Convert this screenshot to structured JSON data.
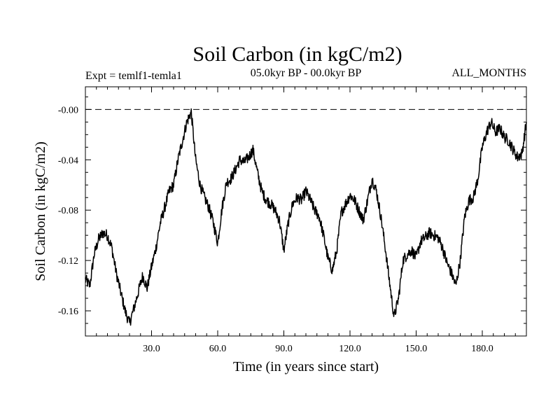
{
  "chart_data": {
    "type": "line",
    "title": "Soil Carbon (in kgC/m2)",
    "subtitle_left": "Expt = temlf1-temla1",
    "subtitle_center": "05.0kyr BP - 00.0kyr BP",
    "subtitle_right": "ALL_MONTHS",
    "xlabel": "Time (in years since start)",
    "ylabel": "Soil Carbon (in kgC/m2)",
    "xlim": [
      0,
      200
    ],
    "ylim": [
      -0.18,
      0.018
    ],
    "xticks": [
      30,
      60,
      90,
      120,
      150,
      180
    ],
    "xtick_labels": [
      "30.0",
      "60.0",
      "90.0",
      "120.0",
      "150.0",
      "180.0"
    ],
    "yticks": [
      0.0,
      -0.04,
      -0.08,
      -0.12,
      -0.16
    ],
    "ytick_labels": [
      "-0.00",
      "-0.04",
      "-0.08",
      "-0.12",
      "-0.16"
    ],
    "reference_line": {
      "y": 0.0,
      "style": "dashed"
    },
    "series": [
      {
        "name": "Soil Carbon",
        "x": [
          0,
          2,
          4,
          6,
          8,
          10,
          12,
          14,
          16,
          18,
          20,
          22,
          24,
          26,
          28,
          30,
          32,
          34,
          36,
          38,
          40,
          42,
          44,
          46,
          48,
          50,
          52,
          54,
          56,
          58,
          60,
          62,
          64,
          66,
          68,
          70,
          72,
          74,
          76,
          78,
          80,
          82,
          84,
          86,
          88,
          90,
          92,
          94,
          96,
          98,
          100,
          102,
          104,
          106,
          108,
          110,
          112,
          114,
          116,
          118,
          120,
          122,
          124,
          126,
          128,
          130,
          132,
          134,
          136,
          138,
          140,
          142,
          144,
          146,
          148,
          150,
          152,
          154,
          156,
          158,
          160,
          162,
          164,
          166,
          168,
          170,
          172,
          174,
          176,
          178,
          180,
          182,
          184,
          186,
          188,
          190,
          192,
          194,
          196,
          198,
          200
        ],
        "values": [
          -0.135,
          -0.14,
          -0.115,
          -0.103,
          -0.098,
          -0.1,
          -0.11,
          -0.13,
          -0.145,
          -0.16,
          -0.17,
          -0.158,
          -0.145,
          -0.132,
          -0.142,
          -0.125,
          -0.11,
          -0.09,
          -0.078,
          -0.065,
          -0.06,
          -0.04,
          -0.025,
          -0.01,
          -0.002,
          -0.04,
          -0.06,
          -0.07,
          -0.078,
          -0.09,
          -0.106,
          -0.078,
          -0.058,
          -0.055,
          -0.048,
          -0.04,
          -0.042,
          -0.038,
          -0.032,
          -0.05,
          -0.065,
          -0.072,
          -0.075,
          -0.08,
          -0.088,
          -0.112,
          -0.09,
          -0.075,
          -0.07,
          -0.072,
          -0.065,
          -0.072,
          -0.08,
          -0.085,
          -0.1,
          -0.118,
          -0.128,
          -0.112,
          -0.082,
          -0.075,
          -0.068,
          -0.072,
          -0.08,
          -0.088,
          -0.072,
          -0.055,
          -0.065,
          -0.085,
          -0.11,
          -0.138,
          -0.165,
          -0.15,
          -0.12,
          -0.115,
          -0.112,
          -0.118,
          -0.105,
          -0.102,
          -0.098,
          -0.1,
          -0.102,
          -0.11,
          -0.122,
          -0.13,
          -0.14,
          -0.12,
          -0.085,
          -0.072,
          -0.07,
          -0.055,
          -0.03,
          -0.018,
          -0.01,
          -0.018,
          -0.015,
          -0.022,
          -0.025,
          -0.032,
          -0.038,
          -0.035,
          -0.01
        ]
      }
    ]
  }
}
